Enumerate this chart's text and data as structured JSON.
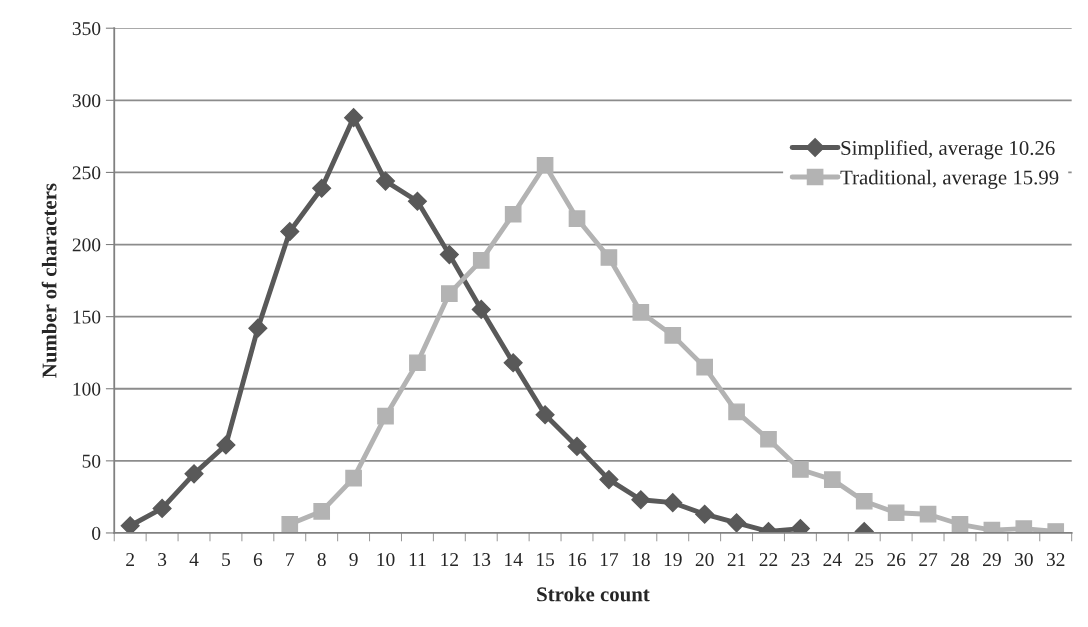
{
  "chart_data": {
    "type": "line",
    "xlabel": "Stroke count",
    "ylabel": "Number of characters",
    "categories": [
      "2",
      "3",
      "4",
      "5",
      "6",
      "7",
      "8",
      "9",
      "10",
      "11",
      "12",
      "13",
      "14",
      "15",
      "16",
      "17",
      "18",
      "19",
      "20",
      "21",
      "22",
      "23",
      "24",
      "25",
      "26",
      "27",
      "28",
      "29",
      "30",
      "32"
    ],
    "series": [
      {
        "name": "Simplified, average 10.26",
        "color": "#595959",
        "marker": "diamond",
        "values": [
          5,
          17,
          41,
          61,
          142,
          209,
          239,
          288,
          244,
          230,
          193,
          155,
          118,
          82,
          60,
          37,
          23,
          21,
          13,
          7,
          1,
          3,
          null,
          1,
          null,
          null,
          null,
          null,
          null,
          null
        ]
      },
      {
        "name": "Traditional, average 15.99",
        "color": "#b3b3b3",
        "marker": "square",
        "values": [
          null,
          null,
          null,
          null,
          null,
          6,
          15,
          38,
          81,
          118,
          166,
          189,
          221,
          255,
          218,
          191,
          153,
          137,
          115,
          84,
          65,
          44,
          37,
          22,
          14,
          13,
          6,
          2,
          3,
          1
        ]
      }
    ],
    "ylim": [
      0,
      350
    ],
    "yticks": [
      0,
      50,
      100,
      150,
      200,
      250,
      300,
      350
    ],
    "grid": "y",
    "legend": "right",
    "line_style": "solid"
  }
}
